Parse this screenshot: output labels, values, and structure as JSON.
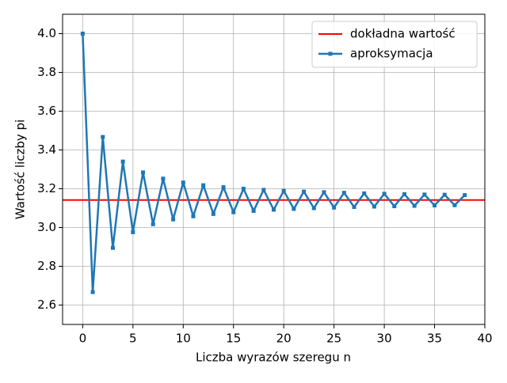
{
  "chart_data": {
    "type": "line",
    "xlabel": "Liczba wyrazów szeregu n",
    "ylabel": "Wartość liczby pi",
    "x": [
      0,
      1,
      2,
      3,
      4,
      5,
      6,
      7,
      8,
      9,
      10,
      11,
      12,
      13,
      14,
      15,
      16,
      17,
      18,
      19,
      20,
      21,
      22,
      23,
      24,
      25,
      26,
      27,
      28,
      29,
      30,
      31,
      32,
      33,
      34,
      35,
      36,
      37,
      38
    ],
    "series": [
      {
        "name": "aproksymacja",
        "color": "#1f77b4",
        "values": [
          4.0,
          2.667,
          3.467,
          2.895,
          3.34,
          2.976,
          3.284,
          3.017,
          3.252,
          3.042,
          3.232,
          3.058,
          3.218,
          3.07,
          3.208,
          3.079,
          3.2,
          3.086,
          3.194,
          3.092,
          3.189,
          3.096,
          3.185,
          3.1,
          3.182,
          3.103,
          3.179,
          3.106,
          3.176,
          3.108,
          3.174,
          3.11,
          3.172,
          3.112,
          3.17,
          3.114,
          3.169,
          3.115,
          3.167
        ]
      }
    ],
    "hline": {
      "name": "dokładna wartość",
      "color": "#ff0000",
      "value": 3.14159
    },
    "xlim": [
      -2,
      40
    ],
    "xticks": [
      0,
      5,
      10,
      15,
      20,
      25,
      30,
      35,
      40
    ],
    "ylim": [
      2.5,
      4.1
    ],
    "yticks": [
      2.6,
      2.8,
      {
        "value": 3.0,
        "label": "3.0"
      },
      3.2,
      3.4,
      3.6,
      3.8,
      {
        "value": 4.0,
        "label": "4.0"
      }
    ],
    "grid": true,
    "legend": "upper right"
  }
}
